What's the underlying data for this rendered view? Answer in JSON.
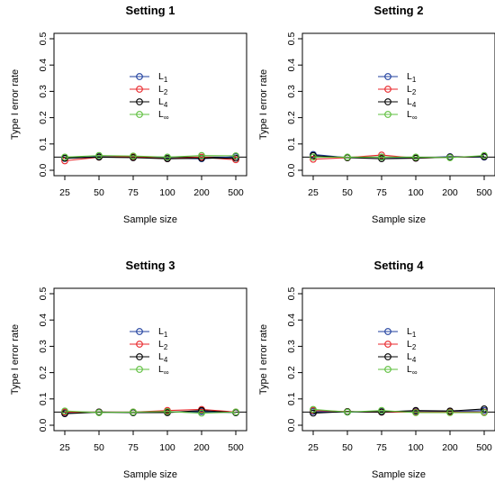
{
  "chart_data": [
    {
      "type": "line",
      "title": "Setting 1",
      "xlabel": "Sample size",
      "ylabel": "Type I error rate",
      "categories": [
        "25",
        "50",
        "75",
        "100",
        "200",
        "500"
      ],
      "ylim": [
        0,
        0.5
      ],
      "yticks": [
        "0.0",
        "0.1",
        "0.2",
        "0.3",
        "0.4",
        "0.5"
      ],
      "reference_line": 0.05,
      "grid": false,
      "legend_position": "center",
      "series": [
        {
          "name": "L1",
          "color": "#1f3f9e",
          "values": [
            0.045,
            0.052,
            0.05,
            0.046,
            0.044,
            0.052
          ]
        },
        {
          "name": "L2",
          "color": "#e8262a",
          "values": [
            0.036,
            0.05,
            0.052,
            0.044,
            0.05,
            0.04
          ]
        },
        {
          "name": "L4",
          "color": "#000000",
          "values": [
            0.046,
            0.05,
            0.048,
            0.044,
            0.046,
            0.046
          ]
        },
        {
          "name": "L∞",
          "color": "#5cbf3c",
          "values": [
            0.05,
            0.056,
            0.054,
            0.05,
            0.056,
            0.055
          ]
        }
      ]
    },
    {
      "type": "line",
      "title": "Setting 2",
      "xlabel": "Sample size",
      "ylabel": "Type I error rate",
      "categories": [
        "25",
        "50",
        "75",
        "100",
        "200",
        "500"
      ],
      "ylim": [
        0,
        0.5
      ],
      "yticks": [
        "0.0",
        "0.1",
        "0.2",
        "0.3",
        "0.4",
        "0.5"
      ],
      "reference_line": 0.05,
      "grid": false,
      "legend_position": "center",
      "series": [
        {
          "name": "L1",
          "color": "#1f3f9e",
          "values": [
            0.06,
            0.048,
            0.05,
            0.046,
            0.052,
            0.05
          ]
        },
        {
          "name": "L2",
          "color": "#e8262a",
          "values": [
            0.042,
            0.048,
            0.058,
            0.046,
            0.05,
            0.052
          ]
        },
        {
          "name": "L4",
          "color": "#000000",
          "values": [
            0.056,
            0.048,
            0.044,
            0.046,
            0.05,
            0.052
          ]
        },
        {
          "name": "L∞",
          "color": "#5cbf3c",
          "values": [
            0.05,
            0.05,
            0.05,
            0.05,
            0.048,
            0.056
          ]
        }
      ]
    },
    {
      "type": "line",
      "title": "Setting 3",
      "xlabel": "Sample size",
      "ylabel": "Type I error rate",
      "categories": [
        "25",
        "50",
        "75",
        "100",
        "200",
        "500"
      ],
      "ylim": [
        0,
        0.5
      ],
      "yticks": [
        "0.0",
        "0.1",
        "0.2",
        "0.3",
        "0.4",
        "0.5"
      ],
      "reference_line": 0.05,
      "grid": false,
      "legend_position": "center",
      "series": [
        {
          "name": "L1",
          "color": "#1f3f9e",
          "values": [
            0.048,
            0.05,
            0.048,
            0.05,
            0.052,
            0.048
          ]
        },
        {
          "name": "L2",
          "color": "#e8262a",
          "values": [
            0.05,
            0.05,
            0.05,
            0.056,
            0.06,
            0.05
          ]
        },
        {
          "name": "L4",
          "color": "#000000",
          "values": [
            0.044,
            0.05,
            0.048,
            0.048,
            0.056,
            0.048
          ]
        },
        {
          "name": "L∞",
          "color": "#5cbf3c",
          "values": [
            0.054,
            0.048,
            0.05,
            0.052,
            0.046,
            0.05
          ]
        }
      ]
    },
    {
      "type": "line",
      "title": "Setting 4",
      "xlabel": "Sample size",
      "ylabel": "Type I error rate",
      "categories": [
        "25",
        "50",
        "75",
        "100",
        "200",
        "500"
      ],
      "ylim": [
        0,
        0.5
      ],
      "yticks": [
        "0.0",
        "0.1",
        "0.2",
        "0.3",
        "0.4",
        "0.5"
      ],
      "reference_line": 0.05,
      "grid": false,
      "legend_position": "center",
      "series": [
        {
          "name": "L1",
          "color": "#1f3f9e",
          "values": [
            0.052,
            0.05,
            0.052,
            0.054,
            0.052,
            0.056
          ]
        },
        {
          "name": "L2",
          "color": "#e8262a",
          "values": [
            0.056,
            0.052,
            0.05,
            0.05,
            0.05,
            0.05
          ]
        },
        {
          "name": "L4",
          "color": "#000000",
          "values": [
            0.046,
            0.052,
            0.05,
            0.056,
            0.054,
            0.062
          ]
        },
        {
          "name": "L∞",
          "color": "#5cbf3c",
          "values": [
            0.06,
            0.05,
            0.056,
            0.048,
            0.048,
            0.048
          ]
        }
      ]
    }
  ]
}
